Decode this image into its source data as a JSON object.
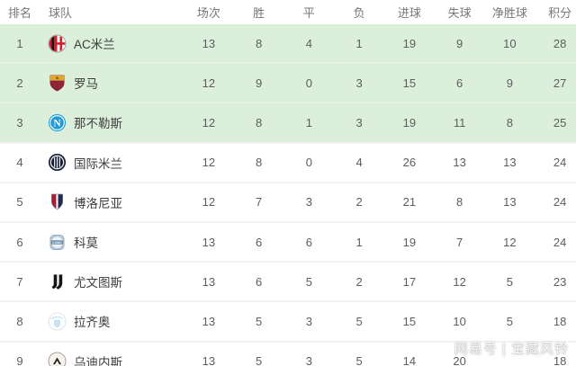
{
  "table": {
    "columns": [
      "排名",
      "球队",
      "场次",
      "胜",
      "平",
      "负",
      "进球",
      "失球",
      "净胜球",
      "积分"
    ],
    "rows": [
      {
        "rank": "1",
        "team": "AC米兰",
        "logo": "ac-milan-crest",
        "played": "13",
        "win": "8",
        "draw": "4",
        "loss": "1",
        "gf": "19",
        "ga": "9",
        "gd": "10",
        "pts": "28",
        "highlight": true
      },
      {
        "rank": "2",
        "team": "罗马",
        "logo": "roma-crest",
        "played": "12",
        "win": "9",
        "draw": "0",
        "loss": "3",
        "gf": "15",
        "ga": "6",
        "gd": "9",
        "pts": "27",
        "highlight": true
      },
      {
        "rank": "3",
        "team": "那不勒斯",
        "logo": "napoli-crest",
        "played": "12",
        "win": "8",
        "draw": "1",
        "loss": "3",
        "gf": "19",
        "ga": "11",
        "gd": "8",
        "pts": "25",
        "highlight": true
      },
      {
        "rank": "4",
        "team": "国际米兰",
        "logo": "inter-crest",
        "played": "12",
        "win": "8",
        "draw": "0",
        "loss": "4",
        "gf": "26",
        "ga": "13",
        "gd": "13",
        "pts": "24",
        "highlight": false
      },
      {
        "rank": "5",
        "team": "博洛尼亚",
        "logo": "bologna-crest",
        "played": "12",
        "win": "7",
        "draw": "3",
        "loss": "2",
        "gf": "21",
        "ga": "8",
        "gd": "13",
        "pts": "24",
        "highlight": false
      },
      {
        "rank": "6",
        "team": "科莫",
        "logo": "como-crest",
        "played": "13",
        "win": "6",
        "draw": "6",
        "loss": "1",
        "gf": "19",
        "ga": "7",
        "gd": "12",
        "pts": "24",
        "highlight": false
      },
      {
        "rank": "7",
        "team": "尤文图斯",
        "logo": "juventus-crest",
        "played": "13",
        "win": "6",
        "draw": "5",
        "loss": "2",
        "gf": "17",
        "ga": "12",
        "gd": "5",
        "pts": "23",
        "highlight": false
      },
      {
        "rank": "8",
        "team": "拉齐奥",
        "logo": "lazio-crest",
        "played": "13",
        "win": "5",
        "draw": "3",
        "loss": "5",
        "gf": "15",
        "ga": "10",
        "gd": "5",
        "pts": "18",
        "highlight": false
      },
      {
        "rank": "9",
        "team": "乌迪内斯",
        "logo": "udinese-crest",
        "played": "13",
        "win": "5",
        "draw": "3",
        "loss": "5",
        "gf": "14",
        "ga": "20",
        "gd": "",
        "pts": "18",
        "highlight": false
      }
    ]
  },
  "watermark": {
    "text": "网易号 | 宝藏风铃"
  },
  "colors": {
    "highlight_green": "#dcefda",
    "green_separator": "#e7f4e4",
    "row_separator": "#f2f2f2",
    "header_text": "#777777",
    "body_text": "#5d5d5d",
    "team_text": "#3c3c3c"
  }
}
